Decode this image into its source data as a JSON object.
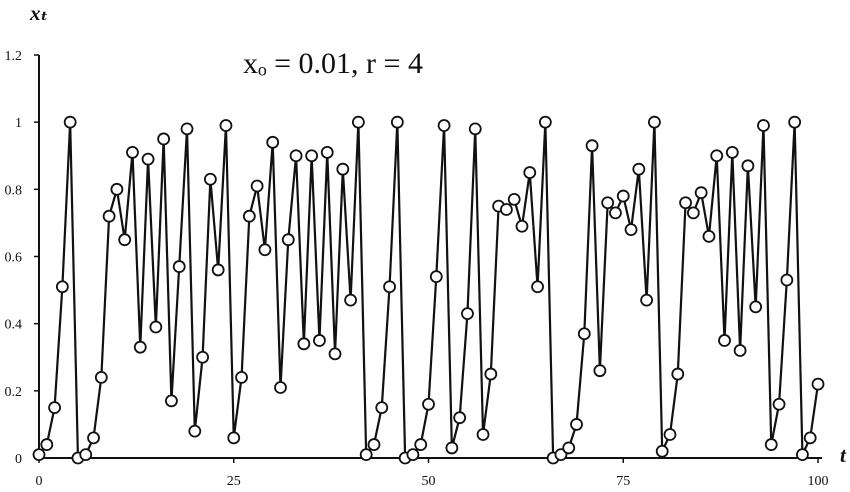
{
  "chart_data": {
    "type": "line",
    "title": "xₒ = 0.01, r = 4",
    "xlabel": "t",
    "ylabel": "xₜ",
    "xlim": [
      0,
      100
    ],
    "ylim": [
      0,
      1.2
    ],
    "x_ticks": [
      "0",
      "25",
      "50",
      "75",
      "100"
    ],
    "y_ticks": [
      "0",
      "0.2",
      "0.4",
      "0.6",
      "0.8",
      "1",
      "1.2"
    ],
    "grid": false,
    "series": [
      {
        "x": [
          0,
          1,
          2,
          3,
          4,
          5,
          6,
          7,
          8,
          9,
          10,
          11,
          12,
          13,
          14,
          15,
          16,
          17,
          18,
          19,
          20,
          21,
          22,
          23,
          24,
          25,
          26,
          27,
          28,
          29,
          30,
          31,
          32,
          33,
          34,
          35,
          36,
          37,
          38,
          39,
          40,
          41,
          42,
          43,
          44,
          45,
          46,
          47,
          48,
          49,
          50,
          51,
          52,
          53,
          54,
          55,
          56,
          57,
          58,
          59,
          60,
          61,
          62,
          63,
          64,
          65,
          66,
          67,
          68,
          69,
          70,
          71,
          72,
          73,
          74,
          75,
          76,
          77,
          78,
          79,
          80,
          81,
          82,
          83,
          84,
          85,
          86,
          87,
          88,
          89,
          90,
          91,
          92,
          93,
          94,
          95,
          96,
          97,
          98,
          99,
          100
        ],
        "values": [
          0.01,
          0.04,
          0.15,
          0.51,
          1.0,
          0.0,
          0.01,
          0.06,
          0.24,
          0.72,
          0.8,
          0.65,
          0.91,
          0.33,
          0.89,
          0.39,
          0.95,
          0.17,
          0.57,
          0.98,
          0.08,
          0.3,
          0.83,
          0.56,
          0.99,
          0.06,
          0.24,
          0.72,
          0.81,
          0.62,
          0.94,
          0.21,
          0.65,
          0.9,
          0.34,
          0.9,
          0.35,
          0.91,
          0.31,
          0.86,
          0.47,
          1.0,
          0.01,
          0.04,
          0.15,
          0.51,
          1.0,
          0.0,
          0.01,
          0.04,
          0.16,
          0.54,
          0.99,
          0.03,
          0.12,
          0.43,
          0.98,
          0.07,
          0.25,
          0.75,
          0.74,
          0.77,
          0.69,
          0.85,
          0.51,
          1.0,
          0.0,
          0.01,
          0.03,
          0.1,
          0.37,
          0.93,
          0.26,
          0.76,
          0.73,
          0.78,
          0.68,
          0.86,
          0.47,
          1.0,
          0.02,
          0.07,
          0.25,
          0.76,
          0.73,
          0.79,
          0.66,
          0.9,
          0.35,
          0.91,
          0.32,
          0.87,
          0.45,
          0.99,
          0.04,
          0.16,
          0.53,
          1.0,
          0.01,
          0.06,
          0.22
        ]
      }
    ]
  }
}
